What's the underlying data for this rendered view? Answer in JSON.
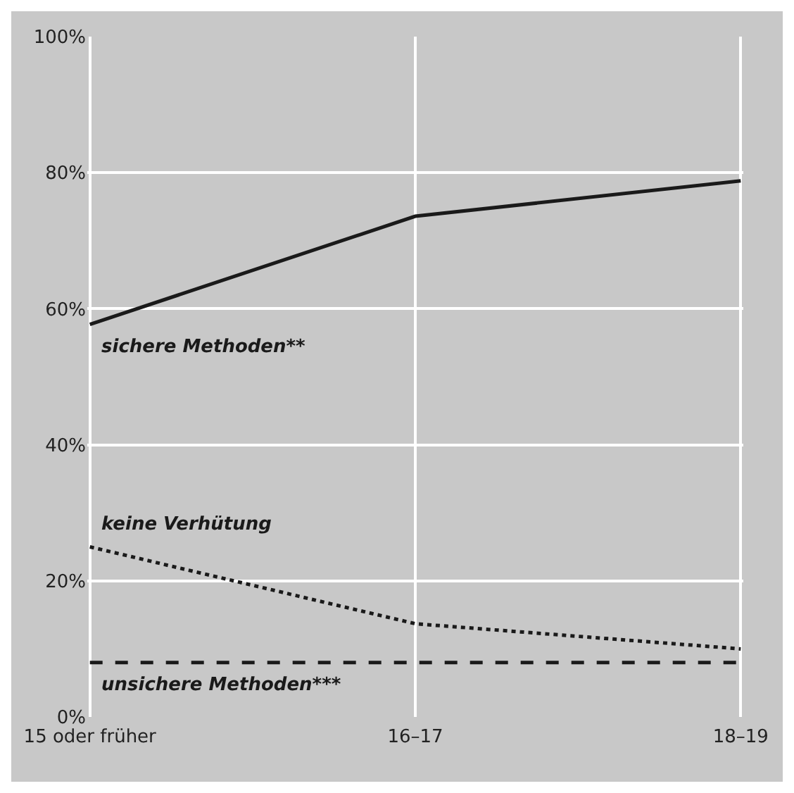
{
  "chart_data": {
    "type": "line",
    "categories": [
      "15 oder früher",
      "16–17",
      "18–19"
    ],
    "series": [
      {
        "name": "sichere Methoden**",
        "color": "#1a1a1a",
        "line_style": "solid",
        "values": [
          57.7,
          73.6,
          78.8
        ]
      },
      {
        "name": "keine Verhütung",
        "color": "#1a1a1a",
        "line_style": "dotted",
        "values": [
          25,
          13.7,
          10
        ]
      },
      {
        "name": "unsichere Methoden***",
        "color": "#1a1a1a",
        "line_style": "dashed",
        "values": [
          8,
          8,
          8
        ]
      }
    ],
    "ylim": [
      0,
      100
    ],
    "yticks": [
      {
        "value": 0,
        "label": "0%"
      },
      {
        "value": 20,
        "label": "20%"
      },
      {
        "value": 40,
        "label": "40%"
      },
      {
        "value": 60,
        "label": "60%"
      },
      {
        "value": 80,
        "label": "80%"
      },
      {
        "value": 100,
        "label": "100%"
      }
    ],
    "grid": true,
    "legend": false,
    "marker": "none"
  }
}
